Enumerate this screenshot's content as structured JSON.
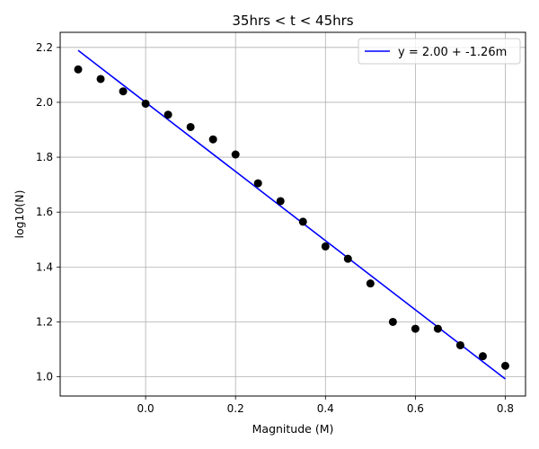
{
  "chart_data": {
    "type": "scatter",
    "title": "35hrs < t < 45hrs",
    "xlabel": "Magnitude (M)",
    "ylabel": "log10(N)",
    "xlim": [
      -0.19,
      0.845
    ],
    "ylim": [
      0.93,
      2.255
    ],
    "xticks": [
      0.0,
      0.2,
      0.4,
      0.6,
      0.8
    ],
    "xtick_labels": [
      "0.0",
      "0.2",
      "0.4",
      "0.6",
      "0.8"
    ],
    "yticks": [
      1.0,
      1.2,
      1.4,
      1.6,
      1.8,
      2.0,
      2.2
    ],
    "ytick_labels": [
      "1.0",
      "1.2",
      "1.4",
      "1.6",
      "1.8",
      "2.0",
      "2.2"
    ],
    "grid": true,
    "legend_position": "top-right",
    "series": [
      {
        "kind": "scatter",
        "color": "#000000",
        "x": [
          -0.15,
          -0.1,
          -0.05,
          0.0,
          0.05,
          0.1,
          0.15,
          0.2,
          0.25,
          0.3,
          0.35,
          0.4,
          0.45,
          0.5,
          0.55,
          0.6,
          0.65,
          0.7,
          0.75,
          0.8
        ],
        "y": [
          2.12,
          2.085,
          2.04,
          1.995,
          1.955,
          1.91,
          1.865,
          1.81,
          1.705,
          1.64,
          1.565,
          1.475,
          1.43,
          1.34,
          1.2,
          1.175,
          1.175,
          1.115,
          1.075,
          1.04
        ]
      },
      {
        "kind": "line",
        "name": "y = 2.00 + -1.26m",
        "color": "#0000ff",
        "intercept": 2.0,
        "slope": -1.26,
        "x": [
          -0.15,
          0.8
        ]
      }
    ]
  }
}
